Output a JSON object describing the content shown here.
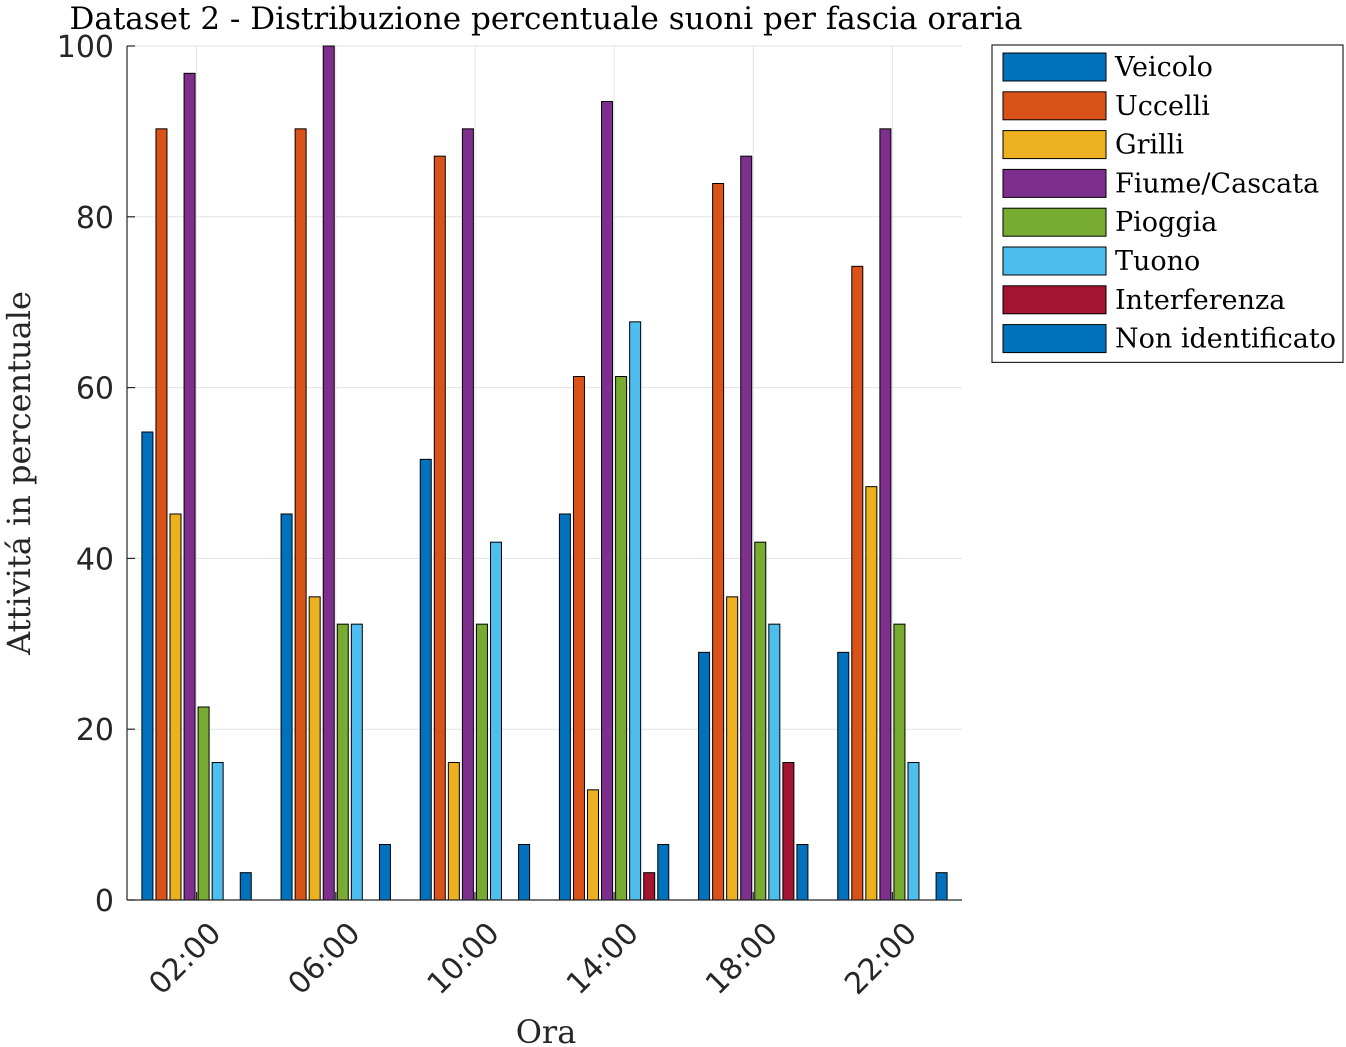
{
  "chart_data": {
    "type": "bar",
    "title": "Dataset 2 - Distribuzione percentuale suoni per fascia oraria",
    "xlabel": "Ora",
    "ylabel": "Attivitá in percentuale",
    "categories": [
      "02:00",
      "06:00",
      "10:00",
      "14:00",
      "18:00",
      "22:00"
    ],
    "ylim": [
      0,
      100
    ],
    "yticks": [
      "0",
      "20",
      "40",
      "60",
      "80",
      "100"
    ],
    "grid": true,
    "legend_position": "outside top-right",
    "series": [
      {
        "name": "Veicolo",
        "color": "#0072BD",
        "values": [
          54.8,
          45.2,
          51.6,
          45.2,
          29.0,
          29.0
        ]
      },
      {
        "name": "Uccelli",
        "color": "#D95319",
        "values": [
          90.3,
          90.3,
          87.1,
          61.3,
          83.9,
          74.2
        ]
      },
      {
        "name": "Grilli",
        "color": "#EDB120",
        "values": [
          45.2,
          35.5,
          16.1,
          12.9,
          35.5,
          48.4
        ]
      },
      {
        "name": "Fiume/Cascata",
        "color": "#7E2F8E",
        "values": [
          96.8,
          100.0,
          90.3,
          93.5,
          87.1,
          90.3
        ]
      },
      {
        "name": "Pioggia",
        "color": "#77AC30",
        "values": [
          22.6,
          32.3,
          32.3,
          61.3,
          41.9,
          32.3
        ]
      },
      {
        "name": "Tuono",
        "color": "#4DBEEE",
        "values": [
          16.1,
          32.3,
          41.9,
          67.7,
          32.3,
          16.1
        ]
      },
      {
        "name": "Interferenza",
        "color": "#A2142F",
        "values": [
          0,
          0,
          0,
          3.2,
          16.1,
          0
        ]
      },
      {
        "name": "Non identificato",
        "color": "#0072BD",
        "values": [
          3.2,
          6.5,
          6.5,
          6.5,
          6.5,
          3.2
        ]
      }
    ]
  }
}
